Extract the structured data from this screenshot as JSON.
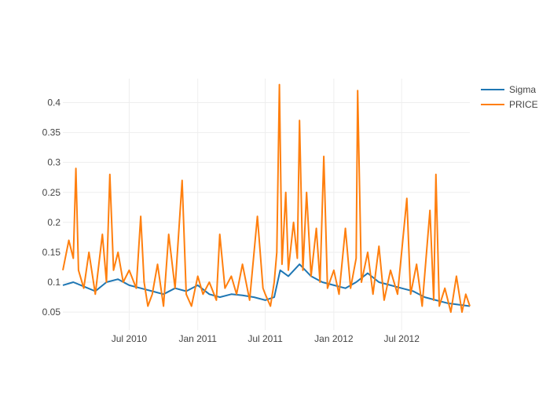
{
  "chart_data": {
    "type": "line",
    "title": "",
    "xlabel": "",
    "ylabel": "",
    "x_type": "date",
    "xlim": [
      "2010-01-04",
      "2012-12-31"
    ],
    "ylim": [
      0.02,
      0.44
    ],
    "x_ticks": [
      {
        "date": "2010-07-01",
        "label": "Jul 2010"
      },
      {
        "date": "2011-01-01",
        "label": "Jan 2011"
      },
      {
        "date": "2011-07-01",
        "label": "Jul 2011"
      },
      {
        "date": "2012-01-01",
        "label": "Jan 2012"
      },
      {
        "date": "2012-07-01",
        "label": "Jul 2012"
      }
    ],
    "y_ticks": [
      {
        "value": 0.05,
        "label": "0.05"
      },
      {
        "value": 0.1,
        "label": "0.1"
      },
      {
        "value": 0.15,
        "label": "0.15"
      },
      {
        "value": 0.2,
        "label": "0.2"
      },
      {
        "value": 0.25,
        "label": "0.25"
      },
      {
        "value": 0.3,
        "label": "0.3"
      },
      {
        "value": 0.35,
        "label": "0.35"
      },
      {
        "value": 0.4,
        "label": "0.4"
      }
    ],
    "grid": true,
    "legend_position": "top-right",
    "series": [
      {
        "name": "Sigma",
        "color": "#1f77b4",
        "points": [
          [
            "2010-01-04",
            0.095
          ],
          [
            "2010-02-01",
            0.1
          ],
          [
            "2010-03-01",
            0.093
          ],
          [
            "2010-04-01",
            0.085
          ],
          [
            "2010-05-01",
            0.1
          ],
          [
            "2010-06-01",
            0.105
          ],
          [
            "2010-07-01",
            0.095
          ],
          [
            "2010-08-01",
            0.09
          ],
          [
            "2010-09-01",
            0.085
          ],
          [
            "2010-10-01",
            0.08
          ],
          [
            "2010-11-01",
            0.09
          ],
          [
            "2010-12-01",
            0.085
          ],
          [
            "2011-01-01",
            0.095
          ],
          [
            "2011-02-01",
            0.08
          ],
          [
            "2011-03-01",
            0.075
          ],
          [
            "2011-04-01",
            0.08
          ],
          [
            "2011-05-01",
            0.078
          ],
          [
            "2011-06-01",
            0.075
          ],
          [
            "2011-07-01",
            0.07
          ],
          [
            "2011-07-25",
            0.075
          ],
          [
            "2011-08-10",
            0.12
          ],
          [
            "2011-09-01",
            0.11
          ],
          [
            "2011-10-01",
            0.13
          ],
          [
            "2011-11-01",
            0.11
          ],
          [
            "2011-12-01",
            0.1
          ],
          [
            "2012-01-01",
            0.095
          ],
          [
            "2012-02-01",
            0.09
          ],
          [
            "2012-03-01",
            0.1
          ],
          [
            "2012-04-01",
            0.115
          ],
          [
            "2012-05-01",
            0.1
          ],
          [
            "2012-06-01",
            0.095
          ],
          [
            "2012-07-01",
            0.09
          ],
          [
            "2012-08-01",
            0.085
          ],
          [
            "2012-09-01",
            0.075
          ],
          [
            "2012-10-01",
            0.07
          ],
          [
            "2012-11-01",
            0.065
          ],
          [
            "2012-12-31",
            0.06
          ]
        ]
      },
      {
        "name": "PRICE",
        "color": "#ff7f0e",
        "points": [
          [
            "2010-01-04",
            0.12
          ],
          [
            "2010-01-20",
            0.17
          ],
          [
            "2010-02-01",
            0.14
          ],
          [
            "2010-02-08",
            0.29
          ],
          [
            "2010-02-15",
            0.12
          ],
          [
            "2010-03-01",
            0.09
          ],
          [
            "2010-03-15",
            0.15
          ],
          [
            "2010-04-01",
            0.08
          ],
          [
            "2010-04-20",
            0.18
          ],
          [
            "2010-05-01",
            0.1
          ],
          [
            "2010-05-10",
            0.28
          ],
          [
            "2010-05-20",
            0.12
          ],
          [
            "2010-06-01",
            0.15
          ],
          [
            "2010-06-15",
            0.1
          ],
          [
            "2010-07-01",
            0.12
          ],
          [
            "2010-07-20",
            0.09
          ],
          [
            "2010-08-01",
            0.21
          ],
          [
            "2010-08-10",
            0.1
          ],
          [
            "2010-08-20",
            0.06
          ],
          [
            "2010-09-01",
            0.08
          ],
          [
            "2010-09-15",
            0.13
          ],
          [
            "2010-10-01",
            0.06
          ],
          [
            "2010-10-15",
            0.18
          ],
          [
            "2010-11-01",
            0.09
          ],
          [
            "2010-11-20",
            0.27
          ],
          [
            "2010-12-01",
            0.08
          ],
          [
            "2010-12-15",
            0.06
          ],
          [
            "2011-01-01",
            0.11
          ],
          [
            "2011-01-15",
            0.08
          ],
          [
            "2011-02-01",
            0.1
          ],
          [
            "2011-02-20",
            0.07
          ],
          [
            "2011-03-01",
            0.18
          ],
          [
            "2011-03-15",
            0.09
          ],
          [
            "2011-04-01",
            0.11
          ],
          [
            "2011-04-15",
            0.08
          ],
          [
            "2011-05-01",
            0.13
          ],
          [
            "2011-05-20",
            0.07
          ],
          [
            "2011-06-10",
            0.21
          ],
          [
            "2011-06-25",
            0.09
          ],
          [
            "2011-07-01",
            0.08
          ],
          [
            "2011-07-15",
            0.06
          ],
          [
            "2011-07-25",
            0.1
          ],
          [
            "2011-08-01",
            0.15
          ],
          [
            "2011-08-08",
            0.43
          ],
          [
            "2011-08-15",
            0.13
          ],
          [
            "2011-08-25",
            0.25
          ],
          [
            "2011-09-01",
            0.12
          ],
          [
            "2011-09-15",
            0.2
          ],
          [
            "2011-09-25",
            0.14
          ],
          [
            "2011-10-01",
            0.37
          ],
          [
            "2011-10-10",
            0.12
          ],
          [
            "2011-10-20",
            0.25
          ],
          [
            "2011-11-01",
            0.11
          ],
          [
            "2011-11-15",
            0.19
          ],
          [
            "2011-11-25",
            0.1
          ],
          [
            "2011-12-05",
            0.31
          ],
          [
            "2011-12-15",
            0.09
          ],
          [
            "2012-01-01",
            0.12
          ],
          [
            "2012-01-15",
            0.08
          ],
          [
            "2012-02-01",
            0.19
          ],
          [
            "2012-02-15",
            0.09
          ],
          [
            "2012-03-01",
            0.14
          ],
          [
            "2012-03-05",
            0.42
          ],
          [
            "2012-03-15",
            0.1
          ],
          [
            "2012-04-01",
            0.15
          ],
          [
            "2012-04-15",
            0.08
          ],
          [
            "2012-05-01",
            0.16
          ],
          [
            "2012-05-15",
            0.07
          ],
          [
            "2012-06-01",
            0.12
          ],
          [
            "2012-06-20",
            0.08
          ],
          [
            "2012-07-15",
            0.24
          ],
          [
            "2012-07-25",
            0.08
          ],
          [
            "2012-08-10",
            0.13
          ],
          [
            "2012-08-25",
            0.06
          ],
          [
            "2012-09-15",
            0.22
          ],
          [
            "2012-09-25",
            0.07
          ],
          [
            "2012-10-01",
            0.28
          ],
          [
            "2012-10-10",
            0.06
          ],
          [
            "2012-10-25",
            0.09
          ],
          [
            "2012-11-10",
            0.05
          ],
          [
            "2012-11-25",
            0.11
          ],
          [
            "2012-12-10",
            0.05
          ],
          [
            "2012-12-20",
            0.08
          ],
          [
            "2012-12-31",
            0.06
          ]
        ]
      }
    ]
  }
}
